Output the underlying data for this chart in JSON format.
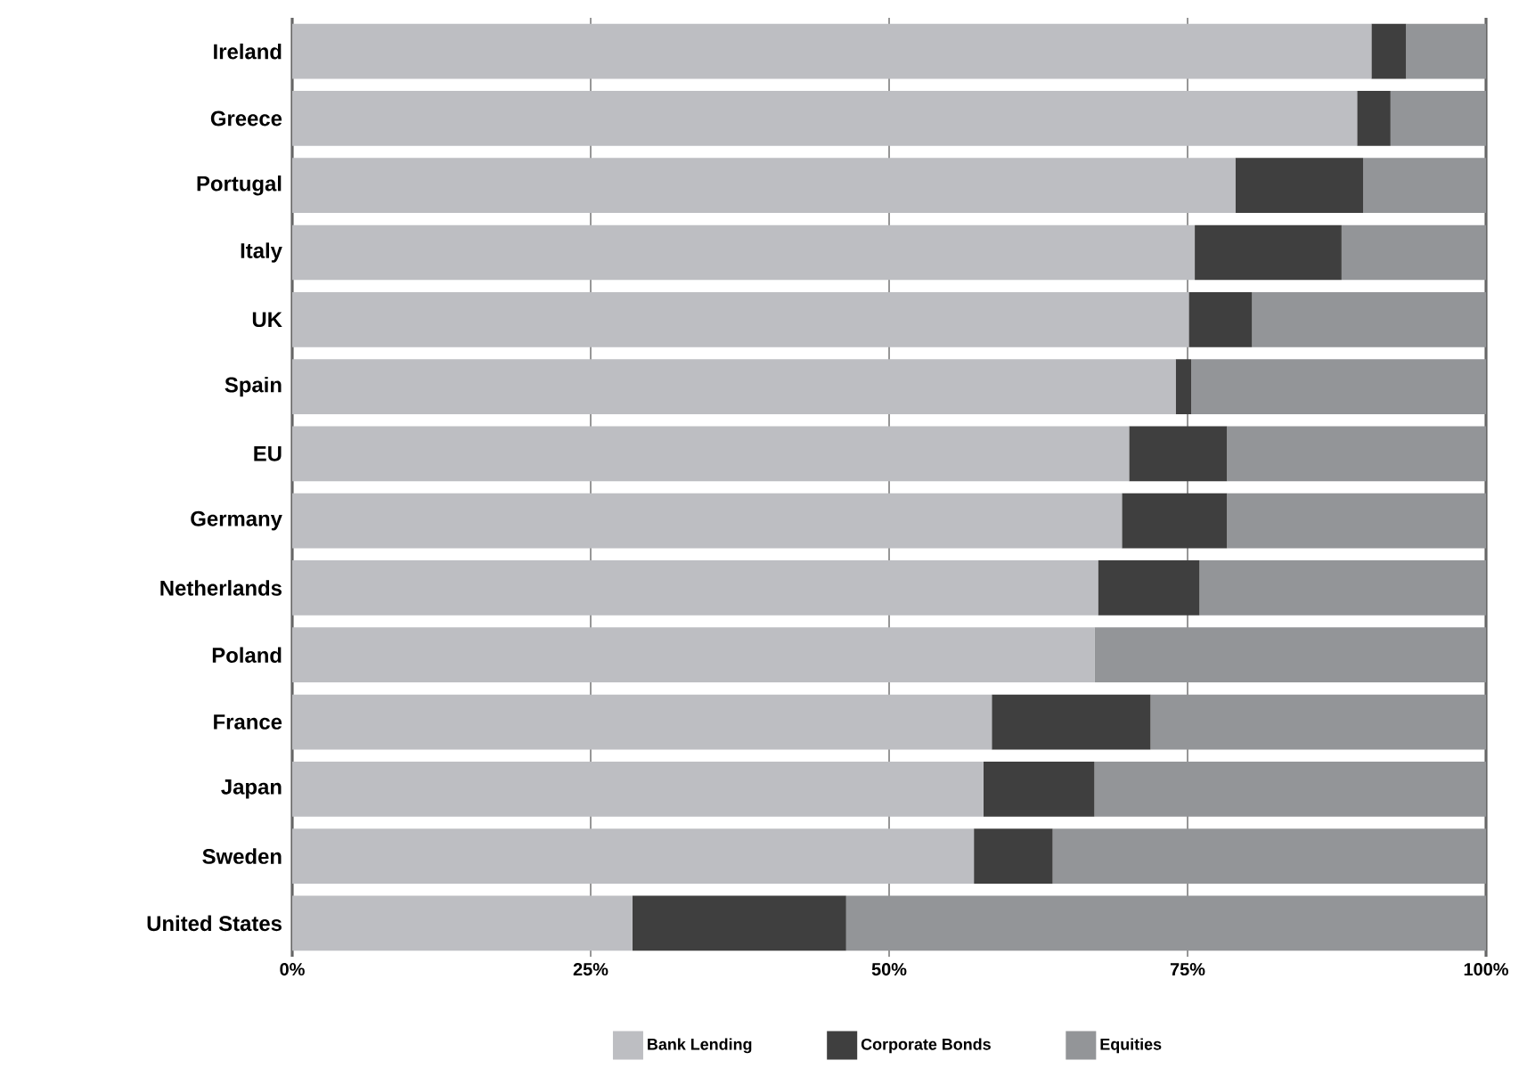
{
  "chart_data": {
    "type": "bar",
    "orientation": "horizontal",
    "stacked": true,
    "categories": [
      "Ireland",
      "Greece",
      "Portugal",
      "Italy",
      "UK",
      "Spain",
      "EU",
      "Germany",
      "Netherlands",
      "Poland",
      "France",
      "Japan",
      "Sweden",
      "United States"
    ],
    "series": [
      {
        "name": "Bank Lending",
        "color": "#bdbec2",
        "values": [
          90.4,
          89.2,
          79.0,
          75.6,
          75.1,
          74.0,
          70.1,
          69.5,
          67.5,
          67.2,
          58.6,
          57.9,
          57.1,
          28.5
        ]
      },
      {
        "name": "Corporate Bonds",
        "color": "#3f3f3f",
        "values": [
          2.9,
          2.8,
          10.7,
          12.3,
          5.3,
          1.3,
          8.2,
          8.8,
          8.5,
          0,
          13.3,
          9.3,
          6.6,
          17.9
        ]
      },
      {
        "name": "Equities",
        "color": "#939598",
        "values": [
          6.7,
          8.0,
          10.3,
          12.1,
          19.6,
          24.7,
          21.7,
          21.7,
          24.0,
          32.8,
          28.1,
          32.8,
          36.3,
          53.6
        ]
      }
    ],
    "xlim": [
      0,
      100
    ],
    "xticks": [
      {
        "value": 0,
        "label": "0%"
      },
      {
        "value": 25,
        "label": "25%"
      },
      {
        "value": 50,
        "label": "50%"
      },
      {
        "value": 75,
        "label": "75%"
      },
      {
        "value": 100,
        "label": "100%"
      }
    ],
    "grid": "x",
    "legend": "bottom"
  }
}
